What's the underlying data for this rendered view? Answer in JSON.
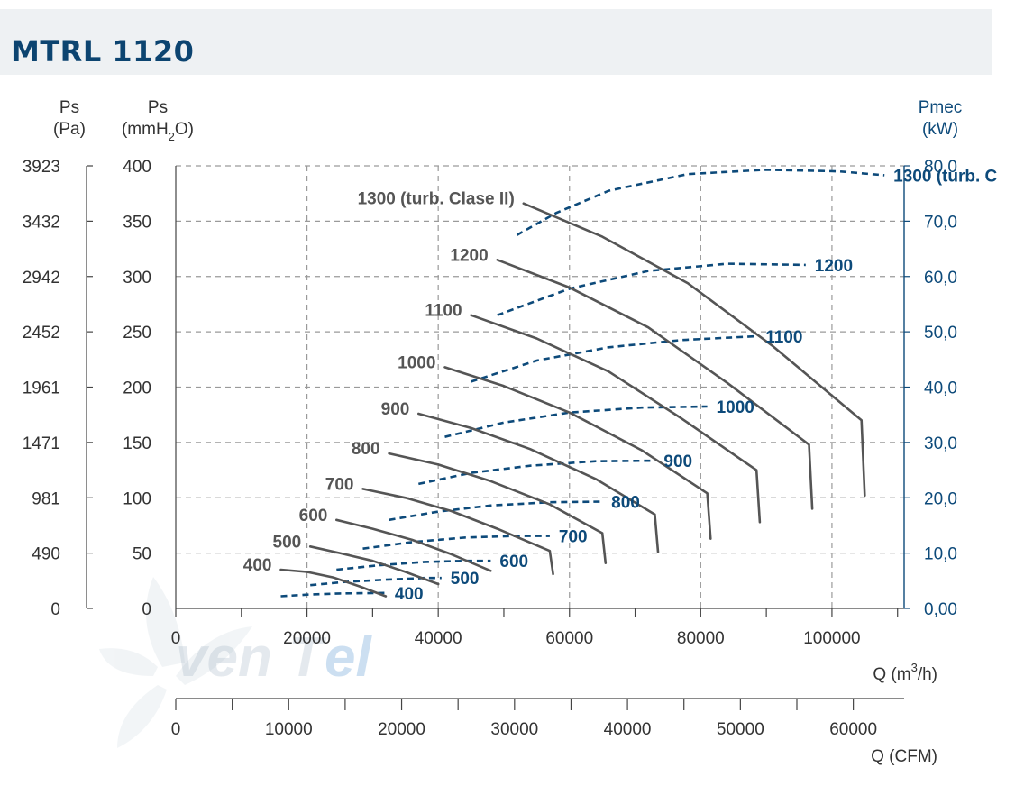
{
  "title": "MTRL 1120",
  "colors": {
    "title": "#0c4470",
    "fan_curves": "#555555",
    "power_curves": "#0d4a7a",
    "grid": "#9a9a9a",
    "axis_text": "#333333",
    "right_axis": "#0d4a7a",
    "title_bar": "#eef1f3"
  },
  "chart_data": {
    "type": "line",
    "axes": {
      "left_pa": {
        "label_line1": "Ps",
        "label_line2": "(Pa)",
        "ticks": [
          "0",
          "490",
          "981",
          "1471",
          "1961",
          "2452",
          "2942",
          "3432",
          "3923"
        ]
      },
      "left_mmh2o": {
        "label_line1": "Ps",
        "label_line2_pre": "(mmH",
        "label_line2_sub": "2",
        "label_line2_post": "O)",
        "ticks": [
          "0",
          "50",
          "100",
          "150",
          "200",
          "250",
          "300",
          "350",
          "400"
        ],
        "range": [
          0,
          400
        ]
      },
      "right_kw": {
        "label_line1": "Pmec",
        "label_line2": "(kW)",
        "ticks": [
          "0,00",
          "10,0",
          "20,0",
          "30,0",
          "40,0",
          "50,0",
          "60,0",
          "70,0",
          "80,0"
        ],
        "range": [
          0,
          80
        ]
      },
      "x_m3h": {
        "label_pre": "Q (m",
        "label_sup": "3",
        "label_post": "/h)",
        "ticks": [
          "0",
          "20000",
          "40000",
          "60000",
          "80000",
          "100000"
        ],
        "range": [
          0,
          111000
        ]
      },
      "x_cfm": {
        "label": "Q (CFM)",
        "ticks": [
          "0",
          "10000",
          "20000",
          "30000",
          "40000",
          "50000",
          "60000"
        ],
        "range": [
          0,
          64500
        ]
      }
    },
    "grid": true,
    "pressure_curves": [
      {
        "name": "400",
        "points": [
          [
            16000,
            35
          ],
          [
            20000,
            33
          ],
          [
            24000,
            28
          ],
          [
            28000,
            20
          ],
          [
            32000,
            11
          ]
        ]
      },
      {
        "name": "500",
        "points": [
          [
            20500,
            56
          ],
          [
            25000,
            50
          ],
          [
            30000,
            43
          ],
          [
            35000,
            33
          ],
          [
            40000,
            22
          ]
        ]
      },
      {
        "name": "600",
        "points": [
          [
            24500,
            80
          ],
          [
            30000,
            72
          ],
          [
            36000,
            62
          ],
          [
            42000,
            49
          ],
          [
            48000,
            34
          ]
        ]
      },
      {
        "name": "700",
        "points": [
          [
            28500,
            108
          ],
          [
            35000,
            100
          ],
          [
            42000,
            88
          ],
          [
            49000,
            72
          ],
          [
            57000,
            52
          ],
          [
            57500,
            31
          ]
        ]
      },
      {
        "name": "800",
        "points": [
          [
            32500,
            140
          ],
          [
            40000,
            130
          ],
          [
            48000,
            115
          ],
          [
            57000,
            94
          ],
          [
            65000,
            68
          ],
          [
            65500,
            41
          ]
        ]
      },
      {
        "name": "900",
        "points": [
          [
            37000,
            176
          ],
          [
            45000,
            163
          ],
          [
            54000,
            144
          ],
          [
            64000,
            117
          ],
          [
            73000,
            85
          ],
          [
            73500,
            51
          ]
        ]
      },
      {
        "name": "1000",
        "points": [
          [
            41000,
            218
          ],
          [
            50000,
            201
          ],
          [
            60000,
            177
          ],
          [
            71000,
            143
          ],
          [
            81000,
            104
          ],
          [
            81500,
            63
          ]
        ]
      },
      {
        "name": "1100",
        "points": [
          [
            45000,
            265
          ],
          [
            55000,
            244
          ],
          [
            66000,
            214
          ],
          [
            77000,
            172
          ],
          [
            88500,
            125
          ],
          [
            89000,
            78
          ]
        ]
      },
      {
        "name": "1200",
        "points": [
          [
            49000,
            315
          ],
          [
            60000,
            290
          ],
          [
            72000,
            254
          ],
          [
            84000,
            204
          ],
          [
            96500,
            148
          ],
          [
            97000,
            90
          ]
        ]
      },
      {
        "name": "1300 (turb. Clase II)",
        "points": [
          [
            53000,
            366
          ],
          [
            65000,
            336
          ],
          [
            78000,
            294
          ],
          [
            91000,
            237
          ],
          [
            104500,
            170
          ],
          [
            105000,
            102
          ]
        ]
      }
    ],
    "power_curves": [
      {
        "name": "400",
        "points": [
          [
            16000,
            2.2
          ],
          [
            20000,
            2.5
          ],
          [
            25000,
            2.7
          ],
          [
            32000,
            2.8
          ]
        ]
      },
      {
        "name": "500",
        "points": [
          [
            20500,
            4.2
          ],
          [
            26000,
            4.8
          ],
          [
            32000,
            5.2
          ],
          [
            38000,
            5.5
          ],
          [
            40500,
            5.5
          ]
        ]
      },
      {
        "name": "600",
        "points": [
          [
            24500,
            7.0
          ],
          [
            31000,
            7.8
          ],
          [
            38000,
            8.4
          ],
          [
            44000,
            8.6
          ],
          [
            48000,
            8.6
          ]
        ]
      },
      {
        "name": "700",
        "points": [
          [
            28500,
            10.8
          ],
          [
            36000,
            12.0
          ],
          [
            44000,
            12.8
          ],
          [
            52000,
            13.1
          ],
          [
            57000,
            13.1
          ]
        ]
      },
      {
        "name": "800",
        "points": [
          [
            32500,
            16.0
          ],
          [
            40000,
            17.5
          ],
          [
            48000,
            18.6
          ],
          [
            57000,
            19.2
          ],
          [
            65000,
            19.3
          ]
        ]
      },
      {
        "name": "900",
        "points": [
          [
            37000,
            22.5
          ],
          [
            45000,
            24.5
          ],
          [
            54000,
            25.8
          ],
          [
            64000,
            26.6
          ],
          [
            73000,
            26.7
          ]
        ]
      },
      {
        "name": "1000",
        "points": [
          [
            41000,
            31.0
          ],
          [
            50000,
            33.6
          ],
          [
            60000,
            35.4
          ],
          [
            71000,
            36.3
          ],
          [
            81000,
            36.5
          ]
        ]
      },
      {
        "name": "1100",
        "points": [
          [
            45000,
            41.0
          ],
          [
            55000,
            44.8
          ],
          [
            66000,
            47.2
          ],
          [
            77000,
            48.5
          ],
          [
            88500,
            49.2
          ]
        ]
      },
      {
        "name": "1200",
        "points": [
          [
            49000,
            53.0
          ],
          [
            60000,
            57.8
          ],
          [
            72000,
            61.0
          ],
          [
            84000,
            62.3
          ],
          [
            96000,
            62.1
          ]
        ]
      },
      {
        "name": "1300 (turb. Clase II)",
        "points": [
          [
            52000,
            67.5
          ],
          [
            58000,
            71.5
          ],
          [
            66000,
            75.5
          ],
          [
            78000,
            78.5
          ],
          [
            90000,
            79.3
          ],
          [
            101000,
            79.0
          ],
          [
            108000,
            78.3
          ]
        ]
      }
    ],
    "pressure_labels": [
      "400",
      "500",
      "600",
      "700",
      "800",
      "900",
      "1000",
      "1100",
      "1200",
      "1300 (turb. Clase II)"
    ],
    "power_labels": [
      "400",
      "500",
      "600",
      "700",
      "800",
      "900",
      "1000",
      "1100",
      "1200",
      "1300 (turb. C"
    ]
  },
  "watermark": {
    "logo_text_1": "ven",
    "logo_text_2": "T",
    "logo_text_3": "el"
  }
}
